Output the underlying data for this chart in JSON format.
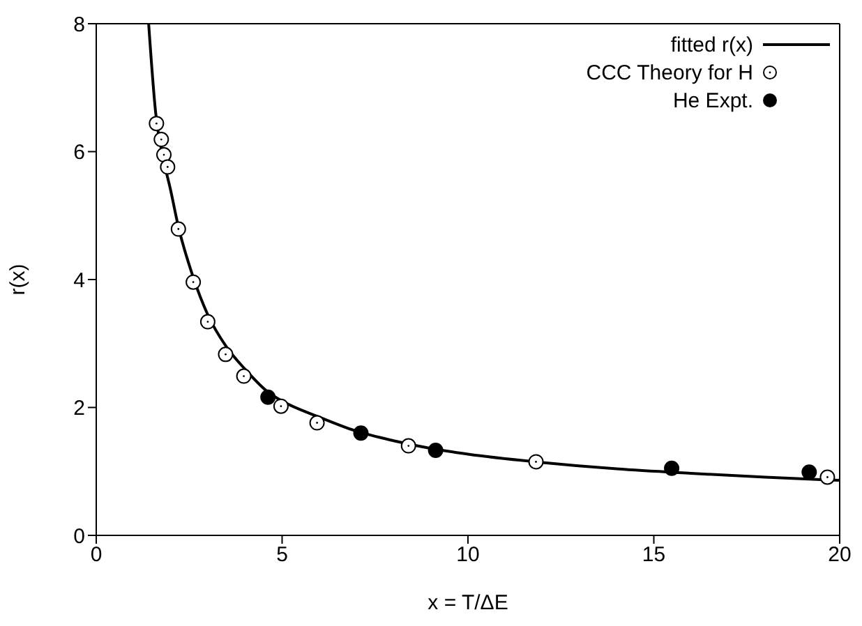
{
  "chart_data": {
    "type": "scatter",
    "xlabel": "x = T/ΔE",
    "ylabel": "r(x)",
    "xlim": [
      0,
      20
    ],
    "ylim": [
      0,
      8
    ],
    "xticks": [
      0,
      5,
      10,
      15,
      20
    ],
    "yticks": [
      0,
      2,
      4,
      6,
      8
    ],
    "grid": false,
    "legend": "top right",
    "marker": "circle",
    "series": [
      {
        "name": "fitted r(x)",
        "type": "line",
        "marker": "none",
        "color": "#000000",
        "x": [
          1.41,
          1.6,
          1.8,
          2,
          2.2,
          2.6,
          3,
          3.5,
          4,
          4.6,
          5,
          6,
          7,
          8,
          9,
          10,
          12,
          14,
          16,
          18,
          20
        ],
        "values": [
          8,
          6.6,
          5.9,
          5.4,
          4.85,
          4.05,
          3.45,
          2.95,
          2.6,
          2.25,
          2.1,
          1.85,
          1.63,
          1.48,
          1.36,
          1.27,
          1.14,
          1.04,
          0.97,
          0.91,
          0.86
        ]
      },
      {
        "name": "CCC Theory for H",
        "color": "#000000",
        "x": [
          1.62,
          1.75,
          1.82,
          1.92,
          2.21,
          2.61,
          3.0,
          3.48,
          3.97,
          4.97,
          5.94,
          8.4,
          11.83,
          19.67
        ],
        "values": [
          6.44,
          6.19,
          5.95,
          5.76,
          4.79,
          3.96,
          3.34,
          2.83,
          2.49,
          2.02,
          1.76,
          1.4,
          1.15,
          0.91
        ]
      },
      {
        "name": "He Expt.",
        "color": "#000000",
        "x": [
          4.62,
          7.12,
          9.13,
          15.48,
          19.18
        ],
        "values": [
          2.16,
          1.6,
          1.33,
          1.05,
          0.99
        ]
      }
    ]
  }
}
